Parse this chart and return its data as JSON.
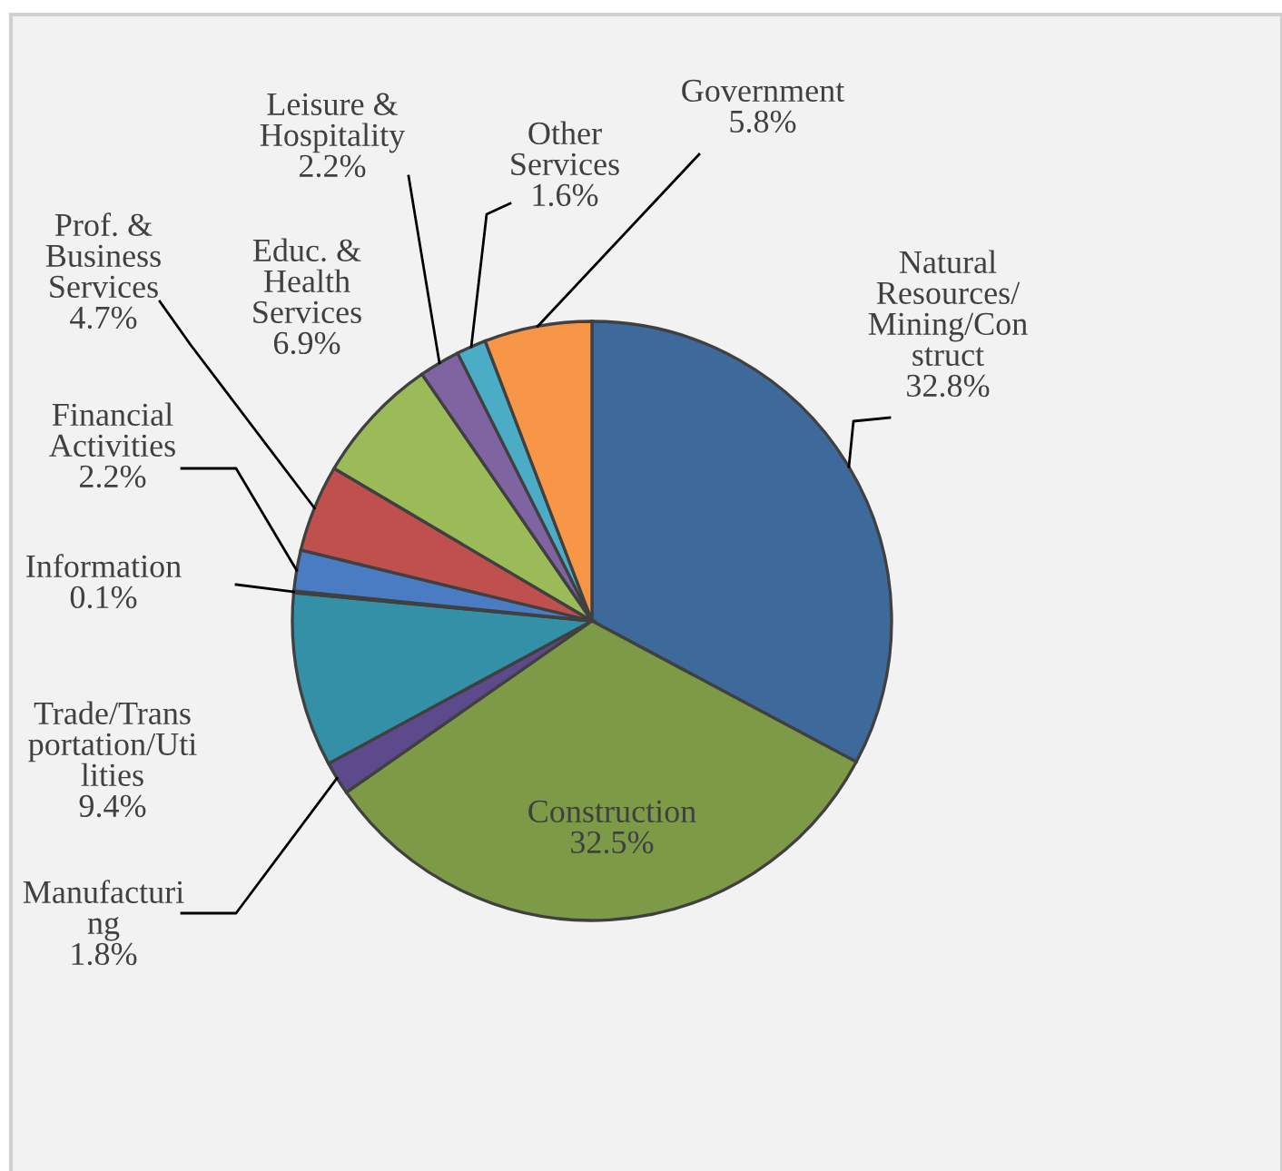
{
  "chart_data": {
    "type": "pie",
    "categories": [
      "Natural\nResources/\nMining/Con\nstruct",
      "Construction",
      "Manufacturi\nng",
      "Trade/Trans\nportation/Uti\nlities",
      "Information",
      "Financial\nActivities",
      "Prof. &\nBusiness\nServices",
      "Educ. &\nHealth\nServices",
      "Leisure &\nHospitality",
      "Other\nServices",
      "Government"
    ],
    "values": [
      32.8,
      32.5,
      1.8,
      9.4,
      0.1,
      2.2,
      4.7,
      6.9,
      2.2,
      1.6,
      5.8
    ],
    "value_labels": [
      "32.8%",
      "32.5%",
      "1.8%",
      "9.4%",
      "0.1%",
      "2.2%",
      "4.7%",
      "6.9%",
      "2.2%",
      "1.6%",
      "5.8%"
    ],
    "colors": [
      "#3e6a9b",
      "#7d9a47",
      "#5d4a8c",
      "#3390a6",
      "#3d5f96",
      "#4a7cc4",
      "#c0504d",
      "#9bbb59",
      "#8064a2",
      "#4bacc6",
      "#f79646"
    ]
  }
}
